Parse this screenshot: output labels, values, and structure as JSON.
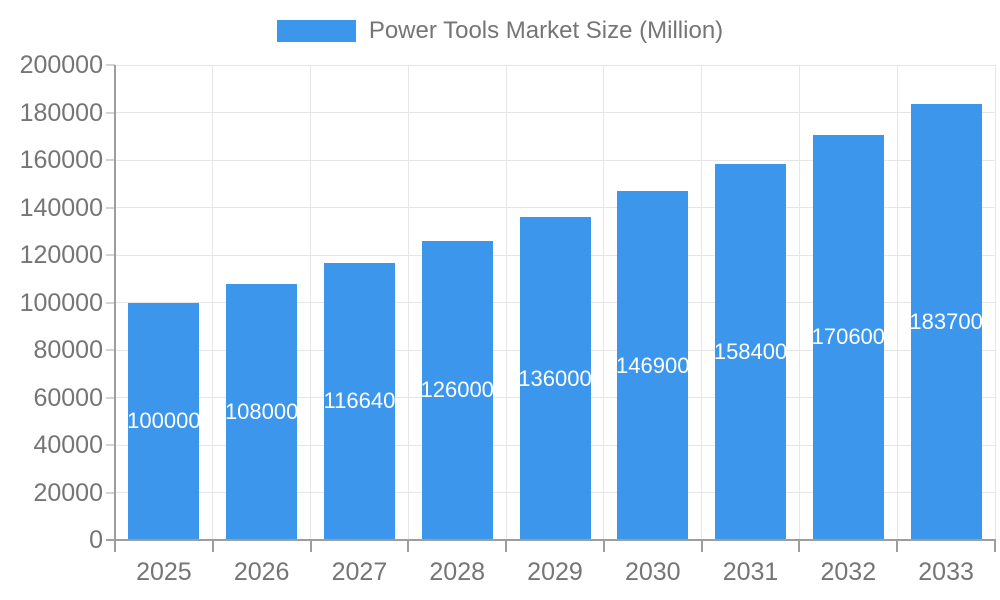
{
  "chart_data": {
    "type": "bar",
    "title": "Power Tools Market Size (Million)",
    "categories": [
      "2025",
      "2026",
      "2027",
      "2028",
      "2029",
      "2030",
      "2031",
      "2032",
      "2033"
    ],
    "values": [
      100000,
      108000,
      116640,
      126000,
      136000,
      146900,
      158400,
      170600,
      183700
    ],
    "value_labels": [
      "100000",
      "108000",
      "116640",
      "126000",
      "136000",
      "146900",
      "158400",
      "170600",
      "183700"
    ],
    "yticks": [
      "0",
      "20000",
      "40000",
      "60000",
      "80000",
      "100000",
      "120000",
      "140000",
      "160000",
      "180000",
      "200000"
    ],
    "ylim": [
      0,
      200000
    ],
    "xlabel": "",
    "ylabel": "",
    "grid": true,
    "legend_position": "top",
    "colors": {
      "bar": "#3c96eb",
      "grid": "#e6e6e6",
      "axis": "#9e9e9e",
      "tick_text": "#757575",
      "bar_label": "#ffffff",
      "background": "#ffffff"
    }
  }
}
